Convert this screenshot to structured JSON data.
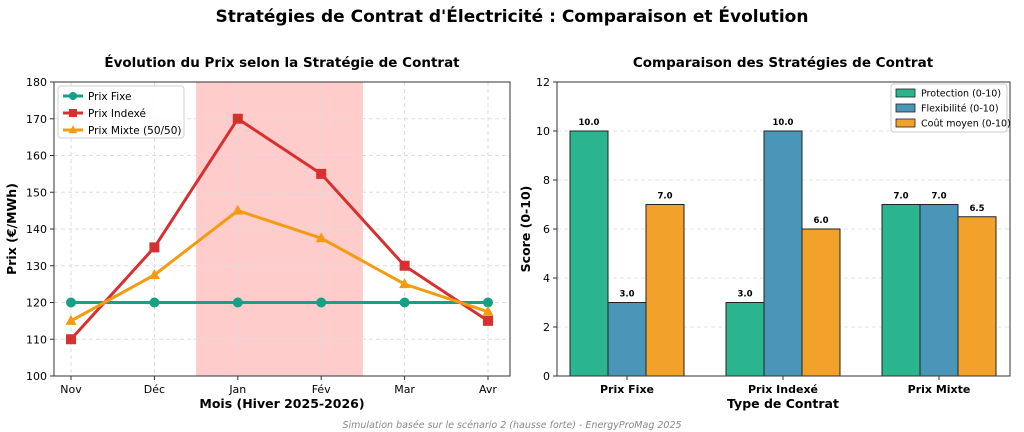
{
  "title": "Stratégies de Contrat d'Électricité : Comparaison et Évolution",
  "footer": "Simulation basée sur le scénario 2 (hausse forte) - EnergyProMag 2025",
  "chart_data": [
    {
      "type": "line",
      "title": "Évolution du Prix selon la Stratégie de Contrat",
      "xlabel": "Mois (Hiver 2025-2026)",
      "ylabel": "Prix (€/MWh)",
      "categories": [
        "Nov",
        "Déc",
        "Jan",
        "Fév",
        "Mar",
        "Avr"
      ],
      "ylim": [
        100,
        180
      ],
      "yticks": [
        100,
        110,
        120,
        130,
        140,
        150,
        160,
        170,
        180
      ],
      "grid": true,
      "legend": "top-left",
      "highlight_span": {
        "from": 1.5,
        "to": 3.5,
        "color": "#ff9999"
      },
      "series": [
        {
          "name": "Prix Fixe",
          "values": [
            120,
            120,
            120,
            120,
            120,
            120
          ],
          "color": "#16a085",
          "marker": "circle"
        },
        {
          "name": "Prix Indexé",
          "values": [
            110,
            135,
            170,
            155,
            130,
            115
          ],
          "color": "#d63031",
          "marker": "square"
        },
        {
          "name": "Prix Mixte (50/50)",
          "values": [
            115,
            127.5,
            145,
            137.5,
            125,
            117.5
          ],
          "color": "#f39c12",
          "marker": "triangle"
        }
      ]
    },
    {
      "type": "bar",
      "title": "Comparaison des Stratégies de Contrat",
      "xlabel": "Type de Contrat",
      "ylabel": "Score (0-10)",
      "categories": [
        "Prix Fixe",
        "Prix Indexé",
        "Prix Mixte"
      ],
      "ylim": [
        0,
        12
      ],
      "yticks": [
        0,
        2,
        4,
        6,
        8,
        10,
        12
      ],
      "grid": true,
      "legend": "top-right",
      "series": [
        {
          "name": "Protection (0-10)",
          "values": [
            10.0,
            3.0,
            7.0
          ],
          "color": "#2bb58f"
        },
        {
          "name": "Flexibilité (0-10)",
          "values": [
            3.0,
            10.0,
            7.0
          ],
          "color": "#4a96b8"
        },
        {
          "name": "Coût moyen (0-10)",
          "values": [
            7.0,
            6.0,
            6.5
          ],
          "color": "#f2a12a"
        }
      ]
    }
  ]
}
